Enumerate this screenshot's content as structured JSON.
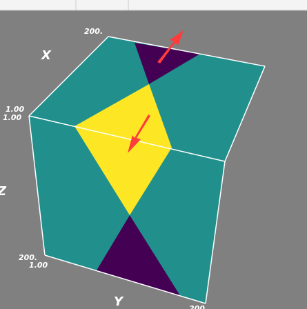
{
  "labels": {
    "x_axis_title": "X",
    "y_axis_title": "Y",
    "z_axis_title": "Z",
    "x_far": "200.",
    "x_near": "1.00",
    "z_near": "1.00",
    "z_far": "200.",
    "y_near": "1.00",
    "y_far": "200"
  }
}
